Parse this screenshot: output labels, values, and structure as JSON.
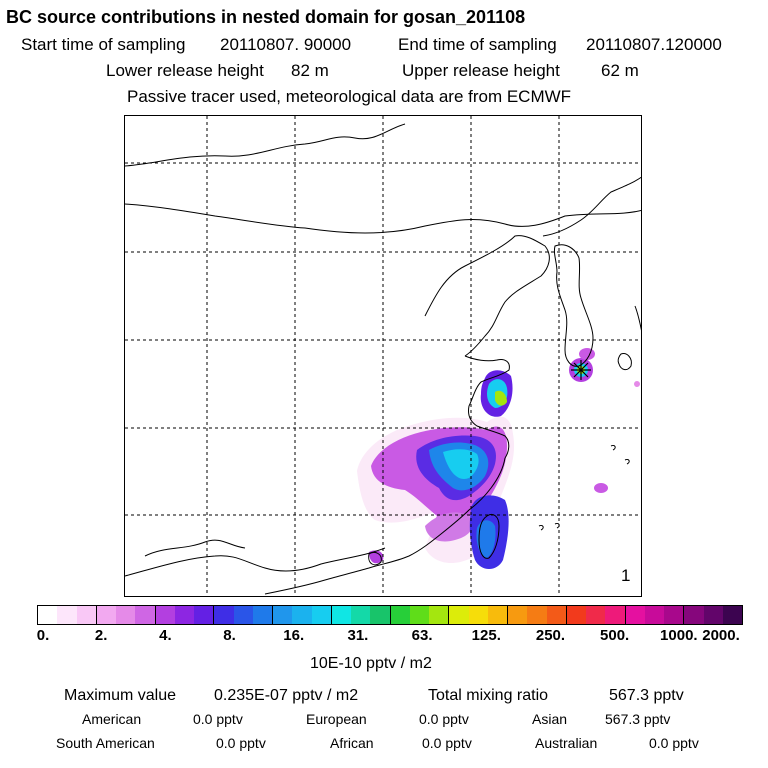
{
  "header": {
    "title": "BC  source contributions in nested domain for gosan_201108",
    "start_label": "Start time of sampling",
    "start_value": "20110807. 90000",
    "end_label": "End time of sampling",
    "end_value": "20110807.120000",
    "lower_label": "Lower release height",
    "lower_value": "82 m",
    "upper_label": "Upper release height",
    "upper_value": "62 m",
    "tracer_note": "Passive tracer used, meteorological data are from ECMWF"
  },
  "map": {
    "panel_number": "1",
    "receptor_marker": "star-icon"
  },
  "colorbar": {
    "colors": [
      "#ffffff",
      "#fde6fb",
      "#f9c8f6",
      "#f2a9f0",
      "#e58ae8",
      "#cf66e4",
      "#b33fe0",
      "#8d26e2",
      "#6420e4",
      "#3f2ee6",
      "#2a55e8",
      "#1f7aea",
      "#2096ec",
      "#1bb2ee",
      "#17cdf0",
      "#10e6e4",
      "#14d9a8",
      "#18c46a",
      "#27cf39",
      "#5fdd19",
      "#a4e60f",
      "#dcec0a",
      "#f6dd0a",
      "#f8bb0c",
      "#f79a10",
      "#f57c14",
      "#f35a18",
      "#f23a1c",
      "#f02a4a",
      "#ee1a7a",
      "#e510a0",
      "#c80b9a",
      "#a8088c",
      "#86067c",
      "#62056a",
      "#3c0450"
    ],
    "tick_labels": [
      "0.",
      "2.",
      "4.",
      "8.",
      "16.",
      "31.",
      "63.",
      "125.",
      "250.",
      "500.",
      "1000.",
      "2000."
    ],
    "units": "10E-10 pptv / m2"
  },
  "stats": {
    "max_label": "Maximum value",
    "max_value": "0.235E-07 pptv / m2",
    "total_label": "Total mixing ratio",
    "total_value": "567.3 pptv",
    "american_label": "American",
    "american_value": "0.0 pptv",
    "european_label": "European",
    "european_value": "0.0 pptv",
    "asian_label": "Asian",
    "asian_value": "567.3 pptv",
    "south_american_label": "South American",
    "south_american_value": "0.0 pptv",
    "african_label": "African",
    "african_value": "0.0 pptv",
    "australian_label": "Australian",
    "australian_value": "0.0 pptv"
  }
}
